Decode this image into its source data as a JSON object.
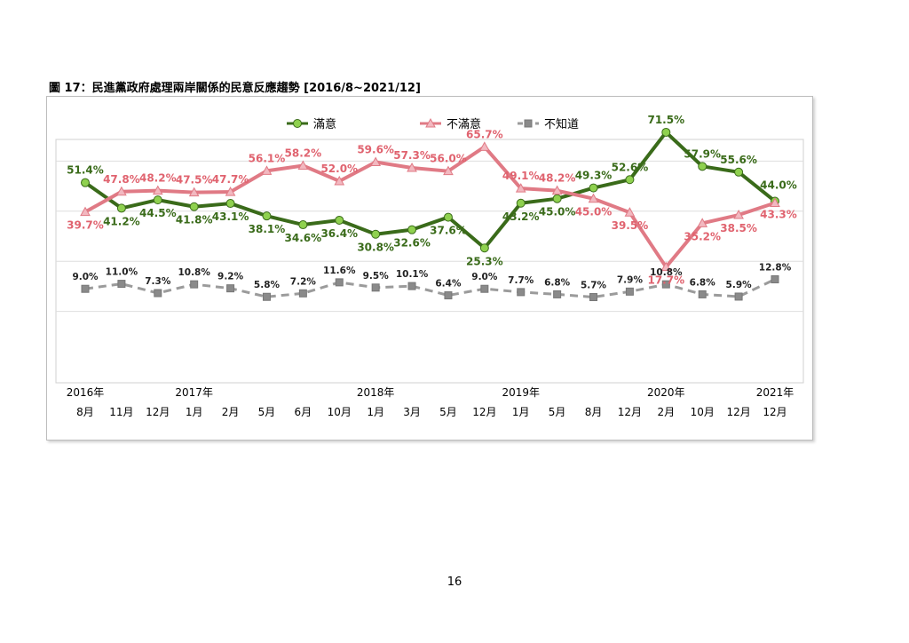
{
  "figure_title": "圖 17：民進黨政府處理兩岸關係的民意反應趨勢  [2016/8~2021/12]",
  "page_number": "16",
  "chart_data": {
    "type": "line",
    "grid": true,
    "legend_position": "top",
    "year_labels": [
      "2016年",
      "",
      "",
      "2017年",
      "",
      "",
      "",
      "",
      "2018年",
      "",
      "",
      "",
      "2019年",
      "",
      "",
      "",
      "2020年",
      "",
      "",
      "2021年"
    ],
    "categories": [
      "8月",
      "11月",
      "12月",
      "1月",
      "2月",
      "5月",
      "6月",
      "10月",
      "1月",
      "3月",
      "5月",
      "12月",
      "1月",
      "5月",
      "8月",
      "12月",
      "2月",
      "10月",
      "12月",
      "12月"
    ],
    "series": [
      {
        "name": "滿意",
        "color": "#3a6b1a",
        "marker_color": "#8fd14f",
        "marker": "circle",
        "dash": false,
        "label_color": "#3a6b1a",
        "values": [
          51.4,
          41.2,
          44.5,
          41.8,
          43.1,
          38.1,
          34.6,
          36.4,
          30.8,
          32.6,
          37.6,
          25.3,
          43.2,
          45.0,
          49.3,
          52.6,
          71.5,
          57.9,
          55.6,
          44.0
        ],
        "labels": [
          "51.4%",
          "41.2%",
          "44.5%",
          "41.8%",
          "43.1%",
          "38.1%",
          "34.6%",
          "36.4%",
          "30.8%",
          "32.6%",
          "37.6%",
          "25.3%",
          "43.2%",
          "45.0%",
          "49.3%",
          "52.6%",
          "71.5%",
          "57.9%",
          "55.6%",
          "44.0%"
        ]
      },
      {
        "name": "不滿意",
        "color": "#e07a85",
        "marker_color": "#f2b8c0",
        "marker": "triangle",
        "dash": false,
        "label_color": "#e0636f",
        "values": [
          39.7,
          47.8,
          48.2,
          47.5,
          47.7,
          56.1,
          58.2,
          52.0,
          59.6,
          57.3,
          56.0,
          65.7,
          49.1,
          48.2,
          45.0,
          39.5,
          17.7,
          35.2,
          38.5,
          43.3
        ],
        "labels": [
          "39.7%",
          "47.8%",
          "48.2%",
          "47.5%",
          "47.7%",
          "56.1%",
          "58.2%",
          "52.0%",
          "59.6%",
          "57.3%",
          "56.0%",
          "65.7%",
          "49.1%",
          "48.2%",
          "45.0%",
          "39.5%",
          "17.7%",
          "35.2%",
          "38.5%",
          "43.3%"
        ]
      },
      {
        "name": "不知道",
        "color": "#9b9b9b",
        "marker_color": "#8a8a8a",
        "marker": "square",
        "dash": true,
        "label_color": "#222222",
        "values": [
          9.0,
          11.0,
          7.3,
          10.8,
          9.2,
          5.8,
          7.2,
          11.6,
          9.5,
          10.1,
          6.4,
          9.0,
          7.7,
          6.8,
          5.7,
          7.9,
          10.8,
          6.8,
          5.9,
          12.8
        ],
        "labels": [
          "9.0%",
          "11.0%",
          "7.3%",
          "10.8%",
          "9.2%",
          "5.8%",
          "7.2%",
          "11.6%",
          "9.5%",
          "10.1%",
          "6.4%",
          "9.0%",
          "7.7%",
          "6.8%",
          "5.7%",
          "7.9%",
          "10.8%",
          "6.8%",
          "5.9%",
          "12.8%"
        ]
      }
    ]
  }
}
